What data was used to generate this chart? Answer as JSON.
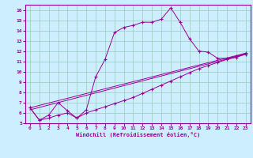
{
  "xlabel": "Windchill (Refroidissement éolien,°C)",
  "bg_color": "#cceeff",
  "grid_color": "#99ccbb",
  "line_color": "#990099",
  "xlim": [
    -0.5,
    23.5
  ],
  "ylim": [
    5,
    16.5
  ],
  "xticks": [
    0,
    1,
    2,
    3,
    4,
    5,
    6,
    7,
    8,
    9,
    10,
    11,
    12,
    13,
    14,
    15,
    16,
    17,
    18,
    19,
    20,
    21,
    22,
    23
  ],
  "yticks": [
    5,
    6,
    7,
    8,
    9,
    10,
    11,
    12,
    13,
    14,
    15,
    16
  ],
  "series1_x": [
    0,
    1,
    2,
    3,
    4,
    5,
    6,
    7,
    8,
    9,
    10,
    11,
    12,
    13,
    14,
    15,
    16,
    17,
    18,
    19,
    20,
    21,
    22,
    23
  ],
  "series1_y": [
    6.5,
    5.3,
    5.8,
    7.0,
    6.2,
    5.5,
    6.3,
    9.5,
    11.2,
    13.8,
    14.3,
    14.5,
    14.8,
    14.8,
    15.1,
    16.2,
    14.8,
    13.2,
    12.0,
    11.9,
    11.3,
    11.3,
    11.5,
    11.8
  ],
  "series2_x": [
    0,
    1,
    2,
    3,
    4,
    5,
    6,
    7,
    8,
    9,
    10,
    11,
    12,
    13,
    14,
    15,
    16,
    17,
    18,
    19,
    20,
    21,
    22,
    23
  ],
  "series2_y": [
    6.5,
    5.3,
    5.5,
    5.8,
    6.0,
    5.5,
    6.0,
    6.3,
    6.6,
    6.9,
    7.2,
    7.5,
    7.9,
    8.3,
    8.7,
    9.1,
    9.5,
    9.9,
    10.3,
    10.6,
    10.9,
    11.2,
    11.4,
    11.7
  ],
  "series3_x": [
    0,
    23
  ],
  "series3_y": [
    6.3,
    11.7
  ],
  "series4_x": [
    0,
    23
  ],
  "series4_y": [
    6.5,
    11.8
  ]
}
